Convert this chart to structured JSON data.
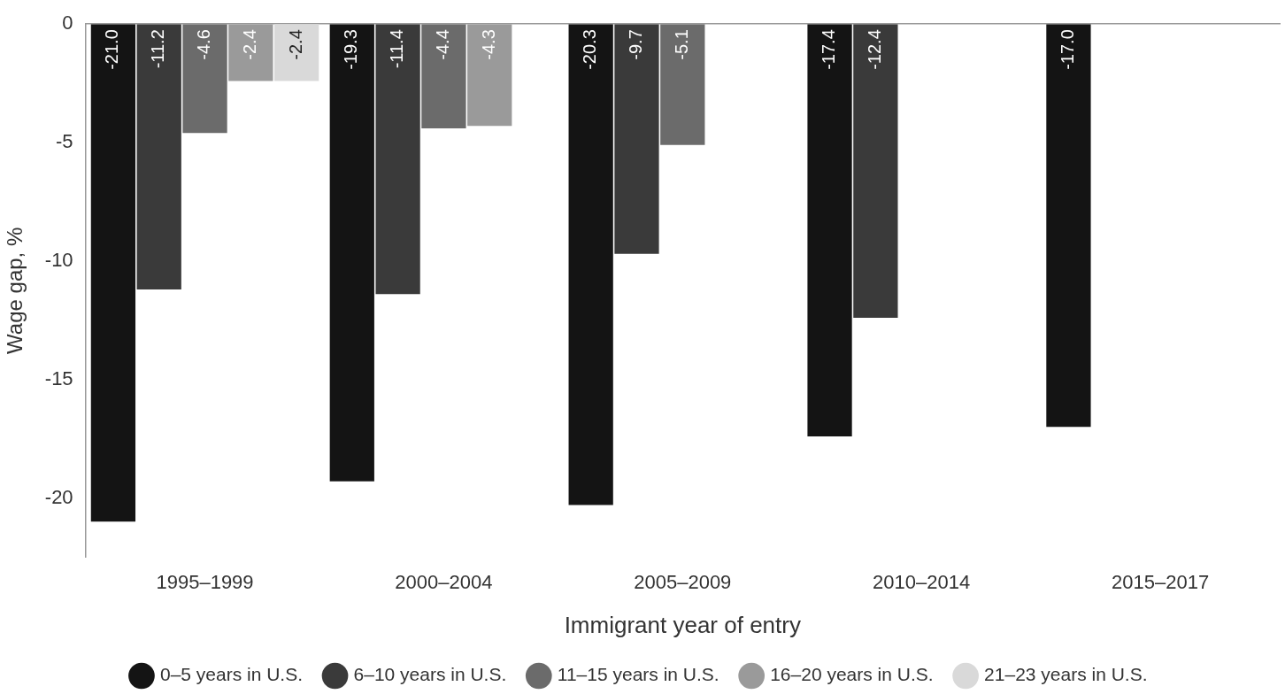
{
  "chart_data": {
    "type": "bar",
    "xlabel": "Immigrant year of entry",
    "ylabel": "Wage gap, %",
    "categories": [
      "1995–1999",
      "2000–2004",
      "2005–2009",
      "2010–2014",
      "2015–2017"
    ],
    "series": [
      {
        "name": "0–5 years in U.S.",
        "color": "#141414",
        "values": [
          -21.0,
          -19.3,
          -20.3,
          -17.4,
          -17.0
        ],
        "value_labels": [
          "-21.0",
          "-19.3",
          "-20.3",
          "-17.4",
          "-17.0"
        ]
      },
      {
        "name": "6–10 years in U.S.",
        "color": "#3a3a3a",
        "values": [
          -11.2,
          -11.4,
          -9.7,
          -12.4,
          null
        ],
        "value_labels": [
          "-11.2",
          "-11.4",
          "-9.7",
          "-12.4",
          null
        ]
      },
      {
        "name": "11–15 years in U.S.",
        "color": "#6b6b6b",
        "values": [
          -4.6,
          -4.4,
          -5.1,
          null,
          null
        ],
        "value_labels": [
          "-4.6",
          "-4.4",
          "-5.1",
          null,
          null
        ]
      },
      {
        "name": "16–20 years in U.S.",
        "color": "#9a9a9a",
        "values": [
          -2.4,
          -4.3,
          null,
          null,
          null
        ],
        "value_labels": [
          "-2.4",
          "-4.3",
          null,
          null,
          null
        ]
      },
      {
        "name": "21–23 years in U.S.",
        "color": "#d9d9d9",
        "values": [
          -2.4,
          null,
          null,
          null,
          null
        ],
        "value_labels": [
          "-2.4",
          null,
          null,
          null,
          null
        ]
      }
    ],
    "ylim": [
      -22.5,
      0
    ],
    "yticks": [
      0,
      -5,
      -10,
      -15,
      -20
    ],
    "legend": "bottom"
  }
}
